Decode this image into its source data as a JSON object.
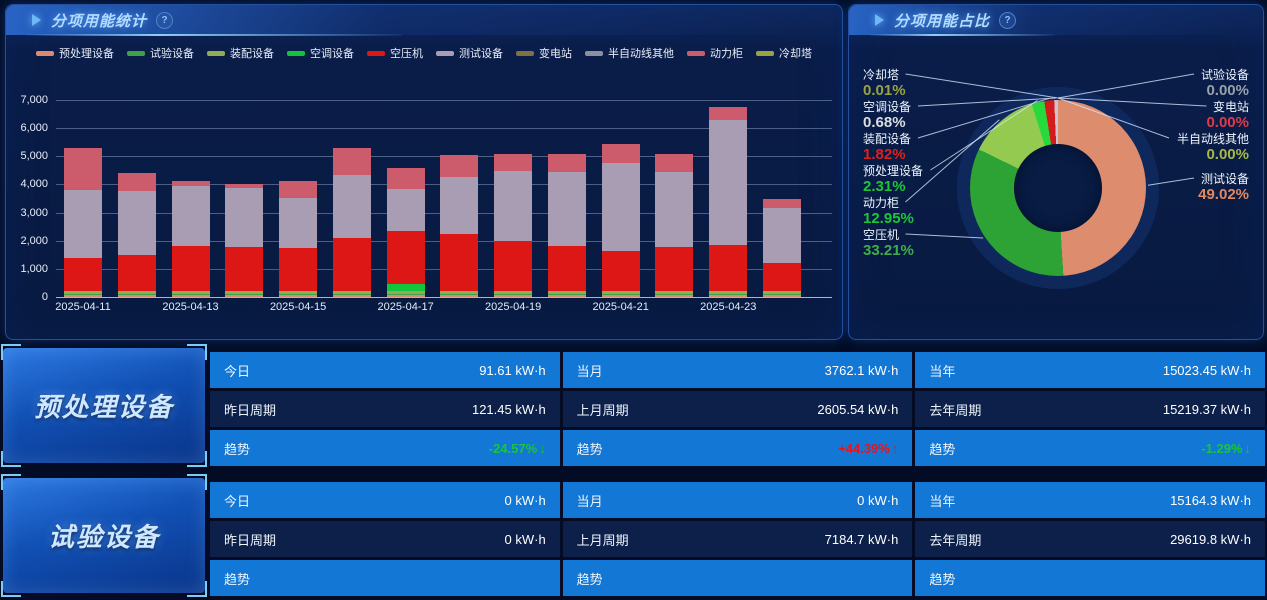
{
  "bar_panel": {
    "title": "分项用能统计",
    "help": "?"
  },
  "pie_panel": {
    "title": "分项用能占比",
    "help": "?"
  },
  "chart_data": [
    {
      "type": "bar",
      "stacked": true,
      "title": "分项用能统计",
      "categories": [
        "2025-04-11",
        "2025-04-12",
        "2025-04-13",
        "2025-04-14",
        "2025-04-15",
        "2025-04-16",
        "2025-04-17",
        "2025-04-18",
        "2025-04-19",
        "2025-04-20",
        "2025-04-21",
        "2025-04-22",
        "2025-04-23",
        "2025-04-24"
      ],
      "x_tick_labels": [
        "2025-04-11",
        "2025-04-13",
        "2025-04-15",
        "2025-04-17",
        "2025-04-19",
        "2025-04-21",
        "2025-04-23"
      ],
      "ylim": [
        0,
        7000
      ],
      "y_ticks": [
        "0",
        "1,000",
        "2,000",
        "3,000",
        "4,000",
        "5,000",
        "6,000",
        "7,000"
      ],
      "legend_position": "top",
      "grid": true,
      "series": [
        {
          "name": "预处理设备",
          "color": "#d98b6f",
          "values": [
            60,
            60,
            60,
            60,
            60,
            60,
            60,
            60,
            60,
            60,
            60,
            60,
            60,
            60
          ]
        },
        {
          "name": "试验设备",
          "color": "#3fa04a",
          "values": [
            30,
            30,
            30,
            30,
            30,
            30,
            30,
            30,
            30,
            30,
            30,
            30,
            30,
            30
          ]
        },
        {
          "name": "装配设备",
          "color": "#8fae52",
          "values": [
            120,
            120,
            120,
            120,
            120,
            120,
            120,
            120,
            120,
            120,
            120,
            120,
            120,
            120
          ]
        },
        {
          "name": "空调设备",
          "color": "#12c53d",
          "values": [
            0,
            0,
            0,
            0,
            0,
            0,
            250,
            0,
            0,
            0,
            0,
            0,
            0,
            0
          ]
        },
        {
          "name": "空压机",
          "color": "#dd1616",
          "values": [
            1180,
            1300,
            1590,
            1560,
            1530,
            1890,
            1870,
            2030,
            1770,
            1590,
            1440,
            1580,
            1630,
            1000
          ]
        },
        {
          "name": "测试设备",
          "color": "#a89db3",
          "values": [
            2420,
            2270,
            2150,
            2090,
            1790,
            2240,
            1500,
            2040,
            2510,
            2650,
            3120,
            2640,
            4440,
            1950
          ]
        },
        {
          "name": "变电站",
          "color": "#7d7340",
          "values": [
            0,
            0,
            0,
            0,
            0,
            0,
            0,
            0,
            0,
            0,
            0,
            0,
            0,
            0
          ]
        },
        {
          "name": "半自动线其他",
          "color": "#8b919c",
          "values": [
            0,
            0,
            0,
            0,
            0,
            0,
            0,
            0,
            0,
            0,
            0,
            0,
            0,
            0
          ]
        },
        {
          "name": "动力柜",
          "color": "#cc5b6b",
          "values": [
            1470,
            640,
            170,
            150,
            600,
            950,
            760,
            760,
            610,
            650,
            680,
            670,
            480,
            330
          ]
        },
        {
          "name": "冷却塔",
          "color": "#97a43f",
          "values": [
            0,
            0,
            0,
            0,
            0,
            0,
            0,
            0,
            0,
            0,
            0,
            0,
            0,
            0
          ]
        }
      ]
    },
    {
      "type": "pie",
      "title": "分项用能占比",
      "legend_position": "none",
      "slices": [
        {
          "name": "测试设备",
          "value": 49.02,
          "pct_label": "49.02%",
          "color": "#dd8c6e",
          "pct_color": "#e2885e",
          "side": "right"
        },
        {
          "name": "空压机",
          "value": 33.21,
          "pct_label": "33.21%",
          "color": "#2ca334",
          "pct_color": "#3fae4a",
          "side": "left"
        },
        {
          "name": "动力柜",
          "value": 12.95,
          "pct_label": "12.95%",
          "color": "#94ca4f",
          "pct_color": "#1ec53a",
          "side": "left"
        },
        {
          "name": "预处理设备",
          "value": 2.31,
          "pct_label": "2.31%",
          "color": "#27d93d",
          "pct_color": "#1ec53a",
          "side": "left"
        },
        {
          "name": "装配设备",
          "value": 1.82,
          "pct_label": "1.82%",
          "color": "#d41a1a",
          "pct_color": "#e0201a",
          "side": "left"
        },
        {
          "name": "空调设备",
          "value": 0.68,
          "pct_label": "0.68%",
          "color": "#cdc3cf",
          "pct_color": "#dadde2",
          "side": "left"
        },
        {
          "name": "冷却塔",
          "value": 0.01,
          "pct_label": "0.01%",
          "color": "#97a43f",
          "pct_color": "#97a43f",
          "side": "left"
        },
        {
          "name": "试验设备",
          "value": 0.0,
          "pct_label": "0.00%",
          "color": "#3fa04a",
          "pct_color": "#9aa0a8",
          "side": "right"
        },
        {
          "name": "变电站",
          "value": 0.0,
          "pct_label": "0.00%",
          "color": "#7d7340",
          "pct_color": "#e03a4a",
          "side": "right"
        },
        {
          "name": "半自动线其他",
          "value": 0.0,
          "pct_label": "0.00%",
          "color": "#8b919c",
          "pct_color": "#a8b840",
          "side": "right"
        }
      ],
      "label_order_left": [
        "冷却塔",
        "空调设备",
        "装配设备",
        "预处理设备",
        "动力柜",
        "空压机"
      ],
      "label_order_right": [
        "试验设备",
        "变电站",
        "半自动线其他",
        "测试设备"
      ]
    }
  ],
  "equipment_blocks": [
    {
      "name": "预处理设备",
      "rows": [
        {
          "style": "blue",
          "type": "data",
          "cells": [
            {
              "label": "今日",
              "value": "91.61 kW·h"
            },
            {
              "label": "当月",
              "value": "3762.1 kW·h"
            },
            {
              "label": "当年",
              "value": "15023.45 kW·h"
            }
          ]
        },
        {
          "style": "dark",
          "type": "data",
          "cells": [
            {
              "label": "昨日周期",
              "value": "121.45 kW·h"
            },
            {
              "label": "上月周期",
              "value": "2605.54 kW·h"
            },
            {
              "label": "去年周期",
              "value": "15219.37 kW·h"
            }
          ]
        },
        {
          "style": "blue",
          "type": "trend",
          "cells": [
            {
              "label": "趋势",
              "value": "-24.57%",
              "direction": "down"
            },
            {
              "label": "趋势",
              "value": "+44.39%",
              "direction": "up"
            },
            {
              "label": "趋势",
              "value": "-1.29%",
              "direction": "down"
            }
          ]
        }
      ]
    },
    {
      "name": "试验设备",
      "rows": [
        {
          "style": "blue",
          "type": "data",
          "cells": [
            {
              "label": "今日",
              "value": "0 kW·h"
            },
            {
              "label": "当月",
              "value": "0 kW·h"
            },
            {
              "label": "当年",
              "value": "15164.3 kW·h"
            }
          ]
        },
        {
          "style": "dark",
          "type": "data",
          "cells": [
            {
              "label": "昨日周期",
              "value": "0 kW·h"
            },
            {
              "label": "上月周期",
              "value": "7184.7 kW·h"
            },
            {
              "label": "去年周期",
              "value": "29619.8 kW·h"
            }
          ]
        },
        {
          "style": "blue",
          "type": "trend",
          "cells": [
            {
              "label": "趋势",
              "value": "",
              "direction": ""
            },
            {
              "label": "趋势",
              "value": "",
              "direction": ""
            },
            {
              "label": "趋势",
              "value": "",
              "direction": ""
            }
          ]
        }
      ]
    }
  ],
  "colors": {
    "row_blue": "#1377d5",
    "row_dark": "#0c2049",
    "trend_up": "#e8141c",
    "trend_down": "#19c53a",
    "panel_bg": "#081a40",
    "page_bg": "#030c24",
    "title_text": "#b4dbff"
  }
}
